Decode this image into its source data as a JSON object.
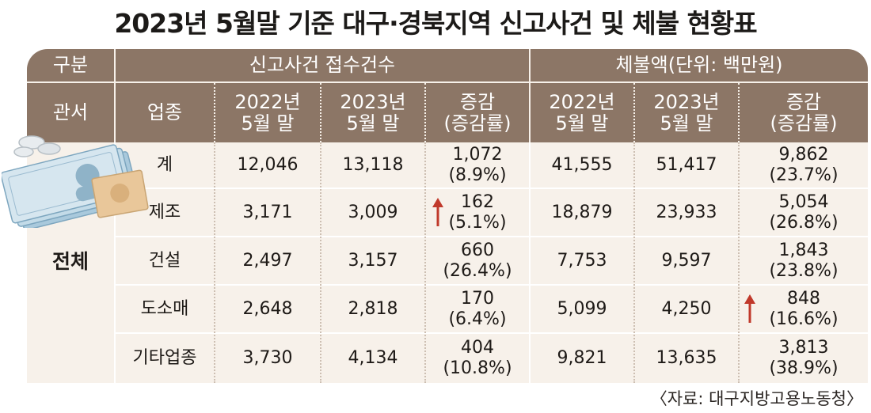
{
  "title": "2023년 5월말 기준 대구·경북지역 신고사건 및 체불 현황표",
  "header": {
    "group_label": "구분",
    "office_label": "관서",
    "industry_label": "업종",
    "cases_group": "신고사건 접수건수",
    "amount_group": "체불액(단위: 백만원)",
    "col_2022": "2022년\n5월 말",
    "col_2023": "2023년\n5월 말",
    "col_change": "증감\n(증감률)"
  },
  "region": "전체",
  "rows": [
    {
      "industry": "계",
      "cases_2022": "12,046",
      "cases_2023": "13,118",
      "cases_change": "1,072\n(8.9%)",
      "amt_2022": "41,555",
      "amt_2023": "51,417",
      "amt_change": "9,862\n(23.7%)"
    },
    {
      "industry": "제조",
      "cases_2022": "3,171",
      "cases_2023": "3,009",
      "cases_change": "162\n(5.1%)",
      "amt_2022": "18,879",
      "amt_2023": "23,933",
      "amt_change": "5,054\n(26.8%)"
    },
    {
      "industry": "건설",
      "cases_2022": "2,497",
      "cases_2023": "3,157",
      "cases_change": "660\n(26.4%)",
      "amt_2022": "7,753",
      "amt_2023": "9,597",
      "amt_change": "1,843\n(23.8%)"
    },
    {
      "industry": "도소매",
      "cases_2022": "2,648",
      "cases_2023": "2,818",
      "cases_change": "170\n(6.4%)",
      "amt_2022": "5,099",
      "amt_2023": "4,250",
      "amt_change": "848\n(16.6%)"
    },
    {
      "industry": "기타업종",
      "cases_2022": "3,730",
      "cases_2023": "4,134",
      "cases_change": "404\n(10.8%)",
      "amt_2022": "9,821",
      "amt_2023": "13,635",
      "amt_change": "3,813\n(38.9%)"
    }
  ],
  "source": "〈자료: 대구지방고용노동청〉",
  "colors": {
    "header_bg": "#8c7666",
    "body_bg": "#f7f1ea",
    "arrow": "#c0392b"
  }
}
